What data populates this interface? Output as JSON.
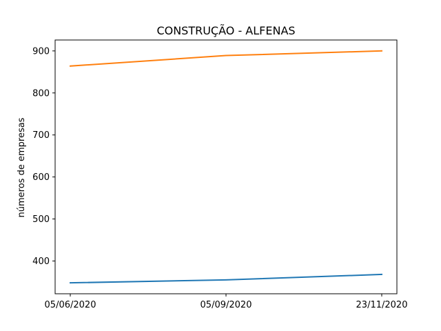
{
  "chart_data": {
    "type": "line",
    "title": "CONSTRUÇÃO - ALFENAS",
    "xlabel": "",
    "ylabel": "números de empresas",
    "categories": [
      "05/06/2020",
      "05/09/2020",
      "23/11/2020"
    ],
    "series": [
      {
        "values": [
          348,
          355,
          368
        ],
        "color": "#1f77b4"
      },
      {
        "values": [
          864,
          889,
          900
        ],
        "color": "#ff7f0e"
      }
    ],
    "yticks": [
      400,
      500,
      600,
      700,
      800,
      900
    ],
    "ylim": [
      322,
      926
    ],
    "grid": false,
    "legend": "none"
  }
}
